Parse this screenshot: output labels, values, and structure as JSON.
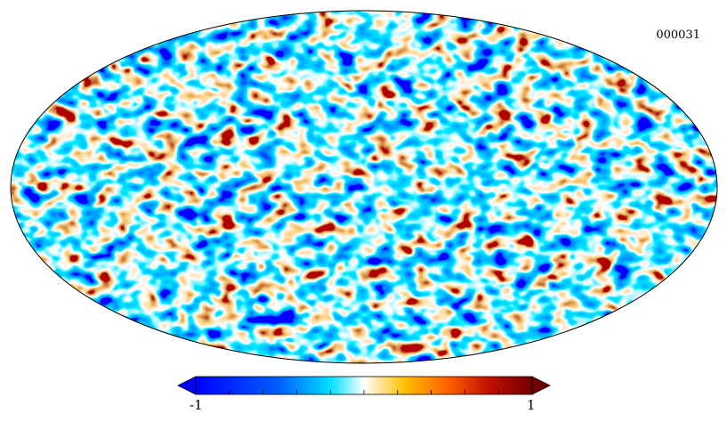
{
  "map": {
    "id_label": "000031",
    "projection": "mollweide",
    "colormap": [
      "#0000ff",
      "#00c8ff",
      "#ffffff",
      "#ffa000",
      "#ff3000",
      "#700000"
    ]
  },
  "colorbar": {
    "min_label": "-1",
    "max_label": "1",
    "range": [
      -1,
      1
    ],
    "tick_count": 11
  }
}
